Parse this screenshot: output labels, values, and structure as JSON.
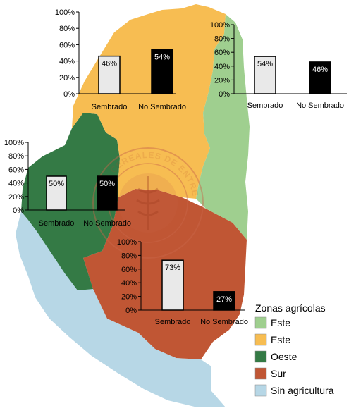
{
  "colors": {
    "este_green": "#9fcf8f",
    "este_yellow": "#f7bd52",
    "oeste": "#347a45",
    "sur": "#c05634",
    "sin_agricultura": "#b7d7e6",
    "bar_sembrado": "#e9e9e9",
    "bar_no_sembrado": "#000000"
  },
  "watermark": {
    "text": "BOLSA DE CEREALES DE ENTRE RÍOS",
    "icon": "wheat-seal-icon"
  },
  "legend": {
    "title": "Zonas agrícolas",
    "items": [
      {
        "label": "Este",
        "color": "#9fcf8f"
      },
      {
        "label": "Este",
        "color": "#f7bd52"
      },
      {
        "label": "Oeste",
        "color": "#347a45"
      },
      {
        "label": "Sur",
        "color": "#c05634"
      },
      {
        "label": "Sin agricultura",
        "color": "#b7d7e6"
      }
    ]
  },
  "chart_data": [
    {
      "type": "bar",
      "zone": "Este (amarillo)",
      "categories": [
        "Sembrado",
        "No Sembrado"
      ],
      "values": [
        46,
        54
      ],
      "data_labels": [
        "46%",
        "54%"
      ],
      "ylim": [
        0,
        100
      ],
      "yticks": [
        "0%",
        "20%",
        "40%",
        "60%",
        "80%",
        "100%"
      ]
    },
    {
      "type": "bar",
      "zone": "Este (verde)",
      "categories": [
        "Sembrado",
        "No Sembrado"
      ],
      "values": [
        54,
        46
      ],
      "data_labels": [
        "54%",
        "46%"
      ],
      "ylim": [
        0,
        100
      ],
      "yticks": [
        "0%",
        "20%",
        "40%",
        "60%",
        "80%",
        "100%"
      ]
    },
    {
      "type": "bar",
      "zone": "Oeste",
      "categories": [
        "Sembrado",
        "No Sembrado"
      ],
      "values": [
        50,
        50
      ],
      "data_labels": [
        "50%",
        "50%"
      ],
      "ylim": [
        0,
        100
      ],
      "yticks": [
        "0%",
        "20%",
        "40%",
        "60%",
        "80%",
        "100%"
      ]
    },
    {
      "type": "bar",
      "zone": "Sur",
      "categories": [
        "Sembrado",
        "No Sembrado"
      ],
      "values": [
        73,
        27
      ],
      "data_labels": [
        "73%",
        "27%"
      ],
      "ylim": [
        0,
        100
      ],
      "yticks": [
        "0%",
        "20%",
        "40%",
        "60%",
        "80%",
        "100%"
      ]
    }
  ]
}
